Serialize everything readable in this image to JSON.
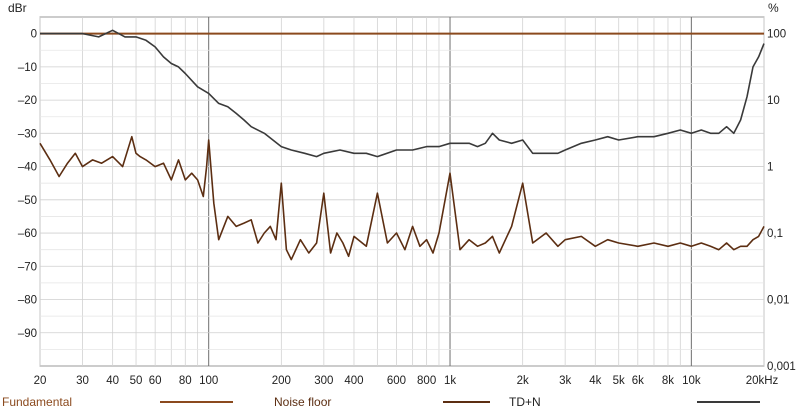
{
  "chart_data": {
    "type": "line",
    "title": "",
    "x_scale": "log",
    "xlim": [
      20,
      20000
    ],
    "x_ticks": [
      {
        "value": 20,
        "label": "20"
      },
      {
        "value": 30,
        "label": "30"
      },
      {
        "value": 40,
        "label": "40"
      },
      {
        "value": 50,
        "label": "50"
      },
      {
        "value": 60,
        "label": "60"
      },
      {
        "value": 80,
        "label": "80"
      },
      {
        "value": 100,
        "label": "100"
      },
      {
        "value": 200,
        "label": "200"
      },
      {
        "value": 300,
        "label": "300"
      },
      {
        "value": 400,
        "label": "400"
      },
      {
        "value": 600,
        "label": "600"
      },
      {
        "value": 800,
        "label": "800"
      },
      {
        "value": 1000,
        "label": "1k"
      },
      {
        "value": 2000,
        "label": "2k"
      },
      {
        "value": 3000,
        "label": "3k"
      },
      {
        "value": 4000,
        "label": "4k"
      },
      {
        "value": 5000,
        "label": "5k"
      },
      {
        "value": 6000,
        "label": "6k"
      },
      {
        "value": 8000,
        "label": "8k"
      },
      {
        "value": 10000,
        "label": "10k"
      },
      {
        "value": 20000,
        "label": "20kHz"
      }
    ],
    "y_left": {
      "unit": "dBr",
      "ylim": [
        -100,
        5
      ],
      "ticks": [
        0,
        -10,
        -20,
        -30,
        -40,
        -50,
        -60,
        -70,
        -80,
        -90
      ]
    },
    "y_right": {
      "unit": "%",
      "scale": "log",
      "ticks": [
        {
          "value": 100,
          "label": "100"
        },
        {
          "value": 10,
          "label": "10"
        },
        {
          "value": 1,
          "label": "1"
        },
        {
          "value": 0.1,
          "label": "0,1"
        },
        {
          "value": 0.01,
          "label": "0,01"
        },
        {
          "value": 0.001,
          "label": "0,001"
        }
      ]
    },
    "grid": true,
    "legend_position": "bottom",
    "legend": [
      {
        "label": "Fundamental",
        "color": "#8B4A1E"
      },
      {
        "label": "Noise floor",
        "color": "#5C2E12"
      },
      {
        "label": "TD+N",
        "color": "#3a3a3a"
      }
    ],
    "series": [
      {
        "name": "Fundamental",
        "axis": "left",
        "color": "#8B4A1E",
        "x": [
          20,
          20000
        ],
        "y": [
          0,
          0
        ]
      },
      {
        "name": "Noise floor",
        "axis": "left",
        "color": "#5C2E12",
        "x": [
          20,
          22,
          24,
          26,
          28,
          30,
          33,
          36,
          40,
          44,
          48,
          50,
          52,
          55,
          60,
          65,
          70,
          75,
          80,
          85,
          90,
          95,
          98,
          100,
          105,
          110,
          120,
          130,
          140,
          150,
          160,
          170,
          180,
          190,
          200,
          210,
          220,
          240,
          260,
          280,
          300,
          320,
          340,
          360,
          380,
          400,
          450,
          500,
          550,
          600,
          650,
          700,
          750,
          800,
          850,
          900,
          1000,
          1100,
          1200,
          1300,
          1400,
          1500,
          1600,
          1800,
          2000,
          2200,
          2500,
          2800,
          3000,
          3500,
          4000,
          4500,
          5000,
          6000,
          7000,
          8000,
          9000,
          10000,
          11000,
          12000,
          13000,
          14000,
          15000,
          16000,
          17000,
          18000,
          19000,
          20000
        ],
        "y": [
          -33,
          -38,
          -43,
          -39,
          -36,
          -40,
          -38,
          -39,
          -37,
          -40,
          -31,
          -36,
          -37,
          -38,
          -40,
          -39,
          -44,
          -38,
          -44,
          -42,
          -44,
          -49,
          -40,
          -32,
          -51,
          -62,
          -55,
          -58,
          -57,
          -56,
          -63,
          -60,
          -58,
          -62,
          -45,
          -65,
          -68,
          -62,
          -66,
          -63,
          -48,
          -66,
          -60,
          -63,
          -67,
          -61,
          -64,
          -48,
          -63,
          -60,
          -65,
          -58,
          -64,
          -62,
          -66,
          -60,
          -42,
          -65,
          -62,
          -64,
          -63,
          -61,
          -66,
          -58,
          -45,
          -63,
          -60,
          -64,
          -62,
          -61,
          -64,
          -62,
          -63,
          -64,
          -63,
          -64,
          -63,
          -64,
          -63,
          -64,
          -65,
          -63,
          -65,
          -64,
          -64,
          -62,
          -61,
          -58
        ]
      },
      {
        "name": "TD+N",
        "axis": "left",
        "color": "#3a3a3a",
        "x": [
          20,
          25,
          30,
          35,
          40,
          45,
          50,
          55,
          60,
          65,
          70,
          75,
          80,
          90,
          100,
          110,
          120,
          130,
          140,
          150,
          170,
          200,
          220,
          250,
          280,
          300,
          350,
          400,
          450,
          500,
          600,
          700,
          800,
          900,
          1000,
          1100,
          1200,
          1300,
          1400,
          1500,
          1600,
          1800,
          2000,
          2200,
          2500,
          2800,
          3000,
          3500,
          4000,
          4500,
          5000,
          6000,
          7000,
          8000,
          9000,
          10000,
          11000,
          12000,
          13000,
          14000,
          15000,
          16000,
          17000,
          18000,
          19000,
          20000
        ],
        "y": [
          0,
          0,
          0,
          -1,
          1,
          -1,
          -1,
          -2,
          -4,
          -7,
          -9,
          -10,
          -12,
          -16,
          -18,
          -21,
          -22,
          -24,
          -26,
          -28,
          -30,
          -34,
          -35,
          -36,
          -37,
          -36,
          -35,
          -36,
          -36,
          -37,
          -35,
          -35,
          -34,
          -34,
          -33,
          -33,
          -33,
          -34,
          -33,
          -30,
          -32,
          -33,
          -32,
          -36,
          -36,
          -36,
          -35,
          -33,
          -32,
          -31,
          -32,
          -31,
          -31,
          -30,
          -29,
          -30,
          -29,
          -30,
          -30,
          -28,
          -30,
          -26,
          -19,
          -10,
          -7,
          -3
        ]
      }
    ]
  }
}
